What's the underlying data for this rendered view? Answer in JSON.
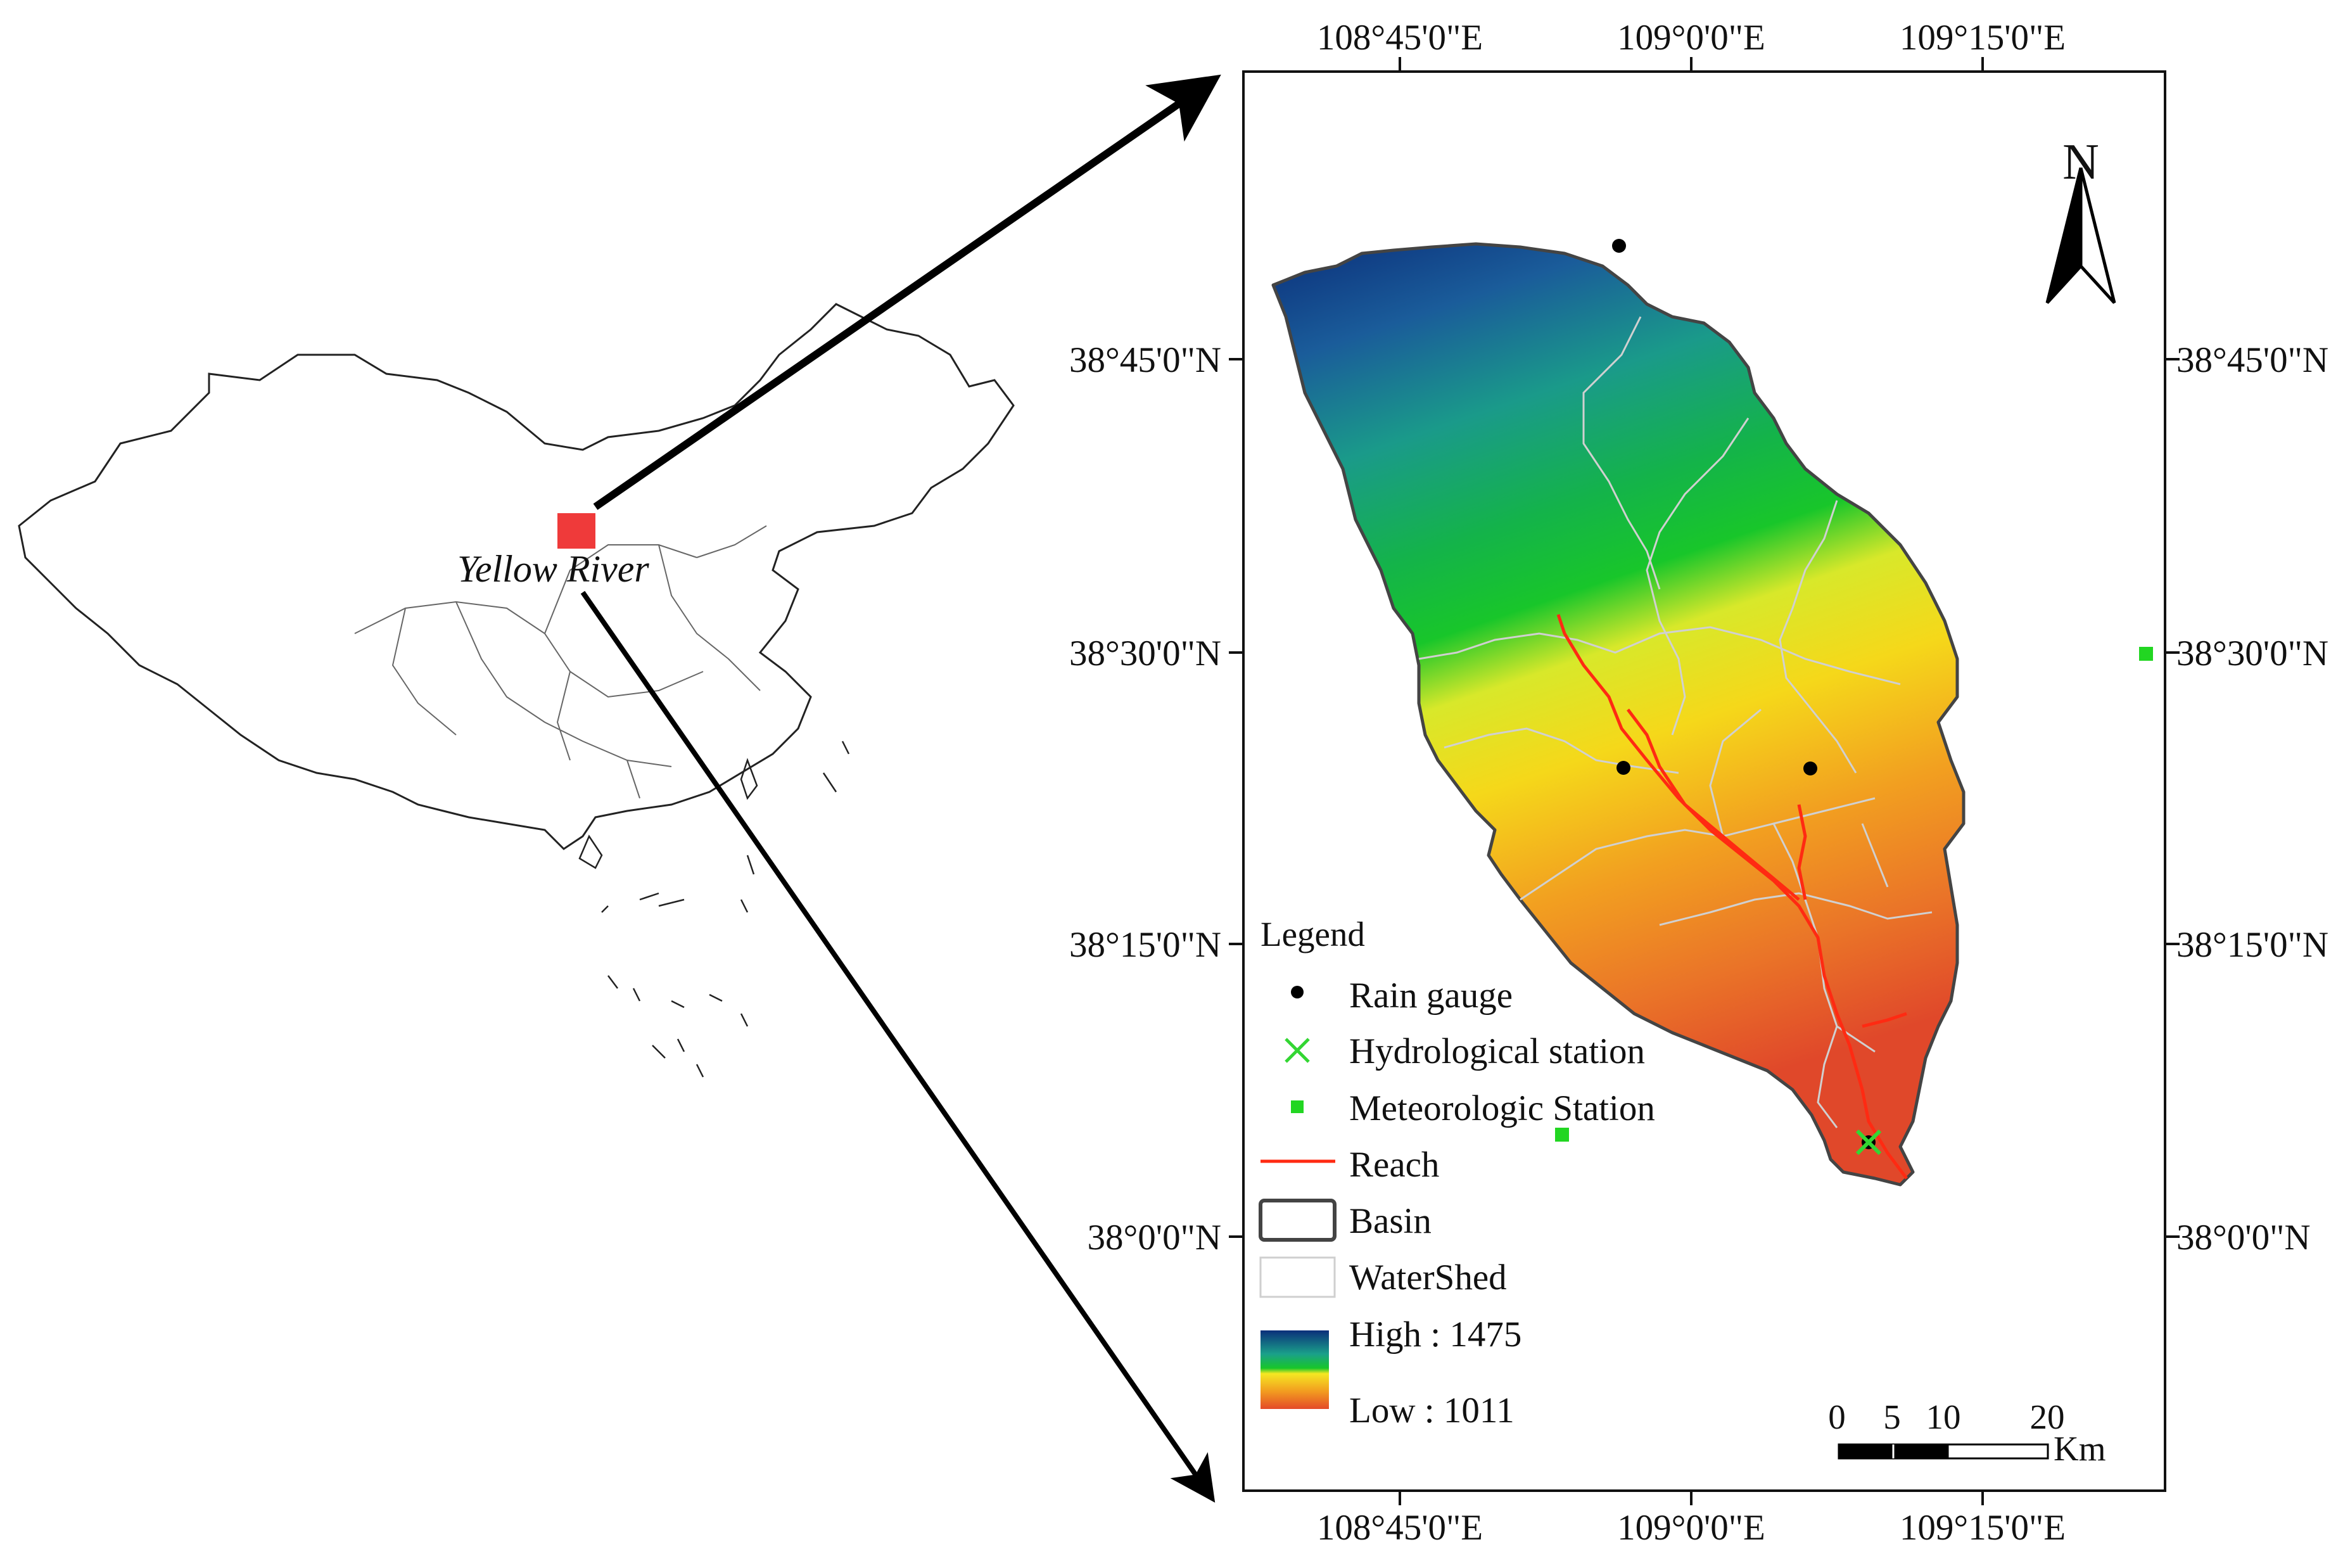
{
  "colors": {
    "inset_box": "#ef3a3a",
    "reach": "#ff2a12",
    "basin_outline": "#555555",
    "watershed": "#cfcfcf",
    "rain_gauge": "#000000",
    "hydrological_station": "#33d633",
    "meteorologic_station": "#22d622",
    "elevation_high": "#0b2f7a",
    "elevation_mid": "#14b34a",
    "elevation_yellow": "#f5e822",
    "elevation_low": "#e44a28"
  },
  "overview_map": {
    "label": "Yellow River"
  },
  "map_frame": {
    "top_labels": [
      "108°45'0\"E",
      "109°0'0\"E",
      "109°15'0\"E"
    ],
    "bottom_labels": [
      "108°45'0\"E",
      "109°0'0\"E",
      "109°15'0\"E"
    ],
    "left_labels": [
      "38°45'0\"N",
      "38°30'0\"N",
      "38°15'0\"N",
      "38°0'0\"N"
    ],
    "right_labels": [
      "38°45'0\"N",
      "38°30'0\"N",
      "38°15'0\"N",
      "38°0'0\"N"
    ]
  },
  "north_arrow": {
    "label": "N",
    "icon": "north-arrow-icon"
  },
  "legend": {
    "title": "Legend",
    "items": [
      {
        "label": "Rain gauge",
        "symbol": "dot"
      },
      {
        "label": "Hydrological station",
        "symbol": "cross"
      },
      {
        "label": "Meteorologic Station",
        "symbol": "square"
      },
      {
        "label": "Reach",
        "symbol": "line"
      },
      {
        "label": "Basin",
        "symbol": "box-dark"
      },
      {
        "label": "WaterShed",
        "symbol": "box-light"
      }
    ],
    "elevation_high": "High : 1475",
    "elevation_low": "Low : 1011"
  },
  "scale_bar": {
    "ticks": [
      "0",
      "5",
      "10",
      "20"
    ],
    "unit": "Km"
  }
}
